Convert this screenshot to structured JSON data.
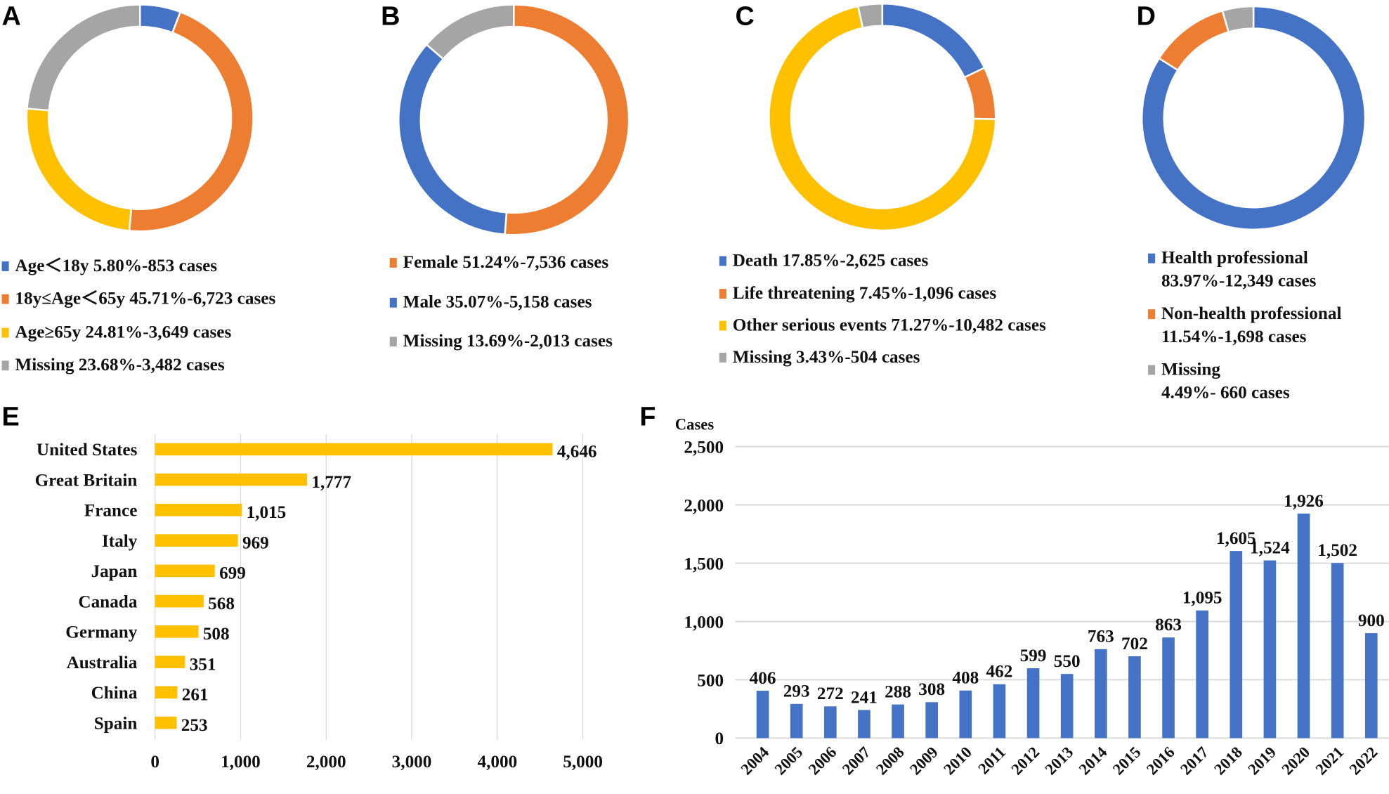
{
  "colors": {
    "blue": "#4472C4",
    "orange": "#ED7D31",
    "yellow": "#FFC000",
    "gray": "#A5A5A5",
    "grid": "#D9D9D9"
  },
  "chart_data": [
    {
      "panel": "A",
      "type": "pie",
      "donut": true,
      "slices": [
        {
          "label": "Age＜18y  5.80%-853 cases",
          "percent": 5.8,
          "cases": 853,
          "color": "blue"
        },
        {
          "label": "18y≤Age＜65y  45.71%-6,723 cases",
          "percent": 45.71,
          "cases": 6723,
          "color": "orange"
        },
        {
          "label": "Age≥65y  24.81%-3,649 cases",
          "percent": 24.81,
          "cases": 3649,
          "color": "yellow"
        },
        {
          "label": "Missing  23.68%-3,482 cases",
          "percent": 23.68,
          "cases": 3482,
          "color": "gray"
        }
      ]
    },
    {
      "panel": "B",
      "type": "pie",
      "donut": true,
      "slices": [
        {
          "label": "Female  51.24%-7,536 cases",
          "percent": 51.24,
          "cases": 7536,
          "color": "orange"
        },
        {
          "label": "Male  35.07%-5,158 cases",
          "percent": 35.07,
          "cases": 5158,
          "color": "blue"
        },
        {
          "label": "Missing 13.69%-2,013 cases",
          "percent": 13.69,
          "cases": 2013,
          "color": "gray"
        }
      ]
    },
    {
      "panel": "C",
      "type": "pie",
      "donut": true,
      "slices": [
        {
          "label": "Death  17.85%-2,625 cases",
          "percent": 17.85,
          "cases": 2625,
          "color": "blue"
        },
        {
          "label": "Life threatening  7.45%-1,096 cases",
          "percent": 7.45,
          "cases": 1096,
          "color": "orange"
        },
        {
          "label": "Other serious events  71.27%-10,482 cases",
          "percent": 71.27,
          "cases": 10482,
          "color": "yellow"
        },
        {
          "label": "Missing  3.43%-504 cases",
          "percent": 3.43,
          "cases": 504,
          "color": "gray"
        }
      ]
    },
    {
      "panel": "D",
      "type": "pie",
      "donut": true,
      "slices": [
        {
          "label": "Health professional",
          "label2": "83.97%-12,349 cases",
          "percent": 83.97,
          "cases": 12349,
          "color": "blue"
        },
        {
          "label": "Non-health professional",
          "label2": "11.54%-1,698 cases",
          "percent": 11.54,
          "cases": 1698,
          "color": "orange"
        },
        {
          "label": "Missing",
          "label2": "4.49%- 660 cases",
          "percent": 4.49,
          "cases": 660,
          "color": "gray"
        }
      ]
    },
    {
      "panel": "E",
      "type": "bar",
      "orientation": "horizontal",
      "categories": [
        "United States",
        "Great Britain",
        "France",
        "Italy",
        "Japan",
        "Canada",
        "Germany",
        "Australia",
        "China",
        "Spain"
      ],
      "values": [
        4646,
        1777,
        1015,
        969,
        699,
        568,
        508,
        351,
        261,
        253
      ],
      "value_labels": [
        "4,646",
        "1,777",
        "1,015",
        "969",
        "699",
        "568",
        "508",
        "351",
        "261",
        "253"
      ],
      "xlim": [
        0,
        5000
      ],
      "xticks": [
        "0",
        "1,000",
        "2,000",
        "3,000",
        "4,000",
        "5,000"
      ],
      "grid": true,
      "color": "yellow"
    },
    {
      "panel": "F",
      "type": "bar",
      "ylabel": "Cases",
      "categories": [
        "2004",
        "2005",
        "2006",
        "2007",
        "2008",
        "2009",
        "2010",
        "2011",
        "2012",
        "2013",
        "2014",
        "2015",
        "2016",
        "2017",
        "2018",
        "2019",
        "2020",
        "2021",
        "2022"
      ],
      "values": [
        406,
        293,
        272,
        241,
        288,
        308,
        408,
        462,
        599,
        550,
        763,
        702,
        863,
        1095,
        1605,
        1524,
        1926,
        1502,
        900
      ],
      "value_labels": [
        "406",
        "293",
        "272",
        "241",
        "288",
        "308",
        "408",
        "462",
        "599",
        "550",
        "763",
        "702",
        "863",
        "1,095",
        "1,605",
        "1,524",
        "1,926",
        "1,502",
        "900"
      ],
      "ylim": [
        0,
        2500
      ],
      "yticks": [
        "0",
        "500",
        "1,000",
        "1,500",
        "2,000",
        "2,500"
      ],
      "grid": true,
      "color": "blue"
    }
  ]
}
